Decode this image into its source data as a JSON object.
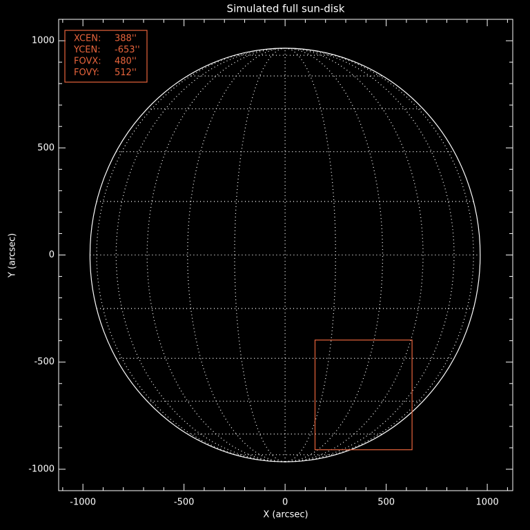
{
  "chart_data": {
    "type": "sundisk",
    "title": "Simulated full sun-disk",
    "xlabel": "X (arcsec)",
    "ylabel": "Y (arcsec)",
    "xlim": [
      -1120,
      1126
    ],
    "ylim": [
      -1100,
      1100
    ],
    "xticks": [
      -1000,
      -500,
      0,
      500,
      1000
    ],
    "yticks": [
      -1000,
      -500,
      0,
      500,
      1000
    ],
    "disk_radius": 965,
    "disk_color": "#ffffff",
    "box_color": "#e8643c",
    "fov": [
      {
        "label": "XCEN:",
        "value": 388,
        "value_label": "388''"
      },
      {
        "label": "YCEN:",
        "value": -653,
        "value_label": "-653''"
      },
      {
        "label": "FOVX:",
        "value": 480,
        "value_label": "480''"
      },
      {
        "label": "FOVY:",
        "value": 512,
        "value_label": "512''"
      }
    ]
  }
}
